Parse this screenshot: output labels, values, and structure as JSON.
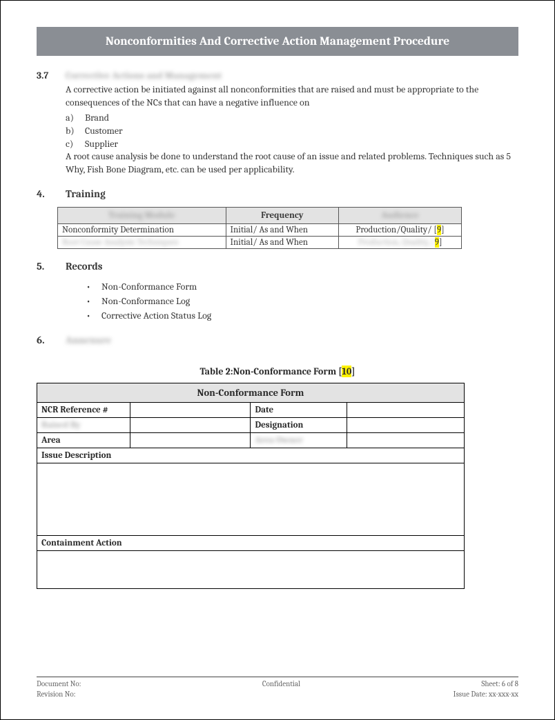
{
  "header": {
    "title": "Nonconformities And Corrective Action Management Procedure"
  },
  "sec37": {
    "num": "3.7",
    "title_blur": "Corrective Actions and Management",
    "p1": "A corrective action be initiated against all nonconformities that are raised and must be appropriate to the consequences of the NCs that can have a negative influence on",
    "items": [
      {
        "letter": "a)",
        "text": "Brand"
      },
      {
        "letter": "b)",
        "text": "Customer"
      },
      {
        "letter": "c)",
        "text": "Supplier"
      }
    ],
    "p2": "A root cause analysis be done to understand the root cause of an issue and related problems. Techniques such as 5 Why, Fish Bone Diagram, etc. can be used per applicability."
  },
  "sec4": {
    "num": "4.",
    "title": "Training",
    "th_blur1": "Training Module",
    "th2": "Frequency",
    "th_blur3": "Audience",
    "rows": [
      {
        "c1": "Nonconformity Determination",
        "c2": "Initial/ As and When",
        "c3_a": "Production/Quality/ [",
        "c3_hl": "9",
        "c3_b": "]"
      },
      {
        "c1_blur": "Root Cause Analysis Techniques",
        "c2": "Initial/ As and When",
        "c3_blur_a": "Production, Quality, [",
        "c3_hl": "9",
        "c3_b": "]"
      }
    ]
  },
  "sec5": {
    "num": "5.",
    "title": "Records",
    "bullets": [
      "Non-Conformance Form",
      "Non-Conformance Log",
      "Corrective Action Status Log"
    ]
  },
  "sec6": {
    "num": "6.",
    "title_blur": "Annexure"
  },
  "caption": {
    "pre": "Table 2:Non-Conformance Form [",
    "hl": "10",
    "post": "]"
  },
  "form": {
    "title": "Non-Conformance Form",
    "r1a": "NCR Reference #",
    "r1b": "Date",
    "r2a_blur": "Raised By",
    "r2b": "Designation",
    "r3a": "Area",
    "r3b_blur": "Area Owner",
    "r4": "Issue Description",
    "r5": "Containment Action"
  },
  "footer": {
    "docno": "Document No:",
    "conf": "Confidential",
    "sheet": "Sheet: 6 of 8",
    "rev": "Revision No:",
    "issue": "Issue Date: xx-xxx-xx"
  }
}
